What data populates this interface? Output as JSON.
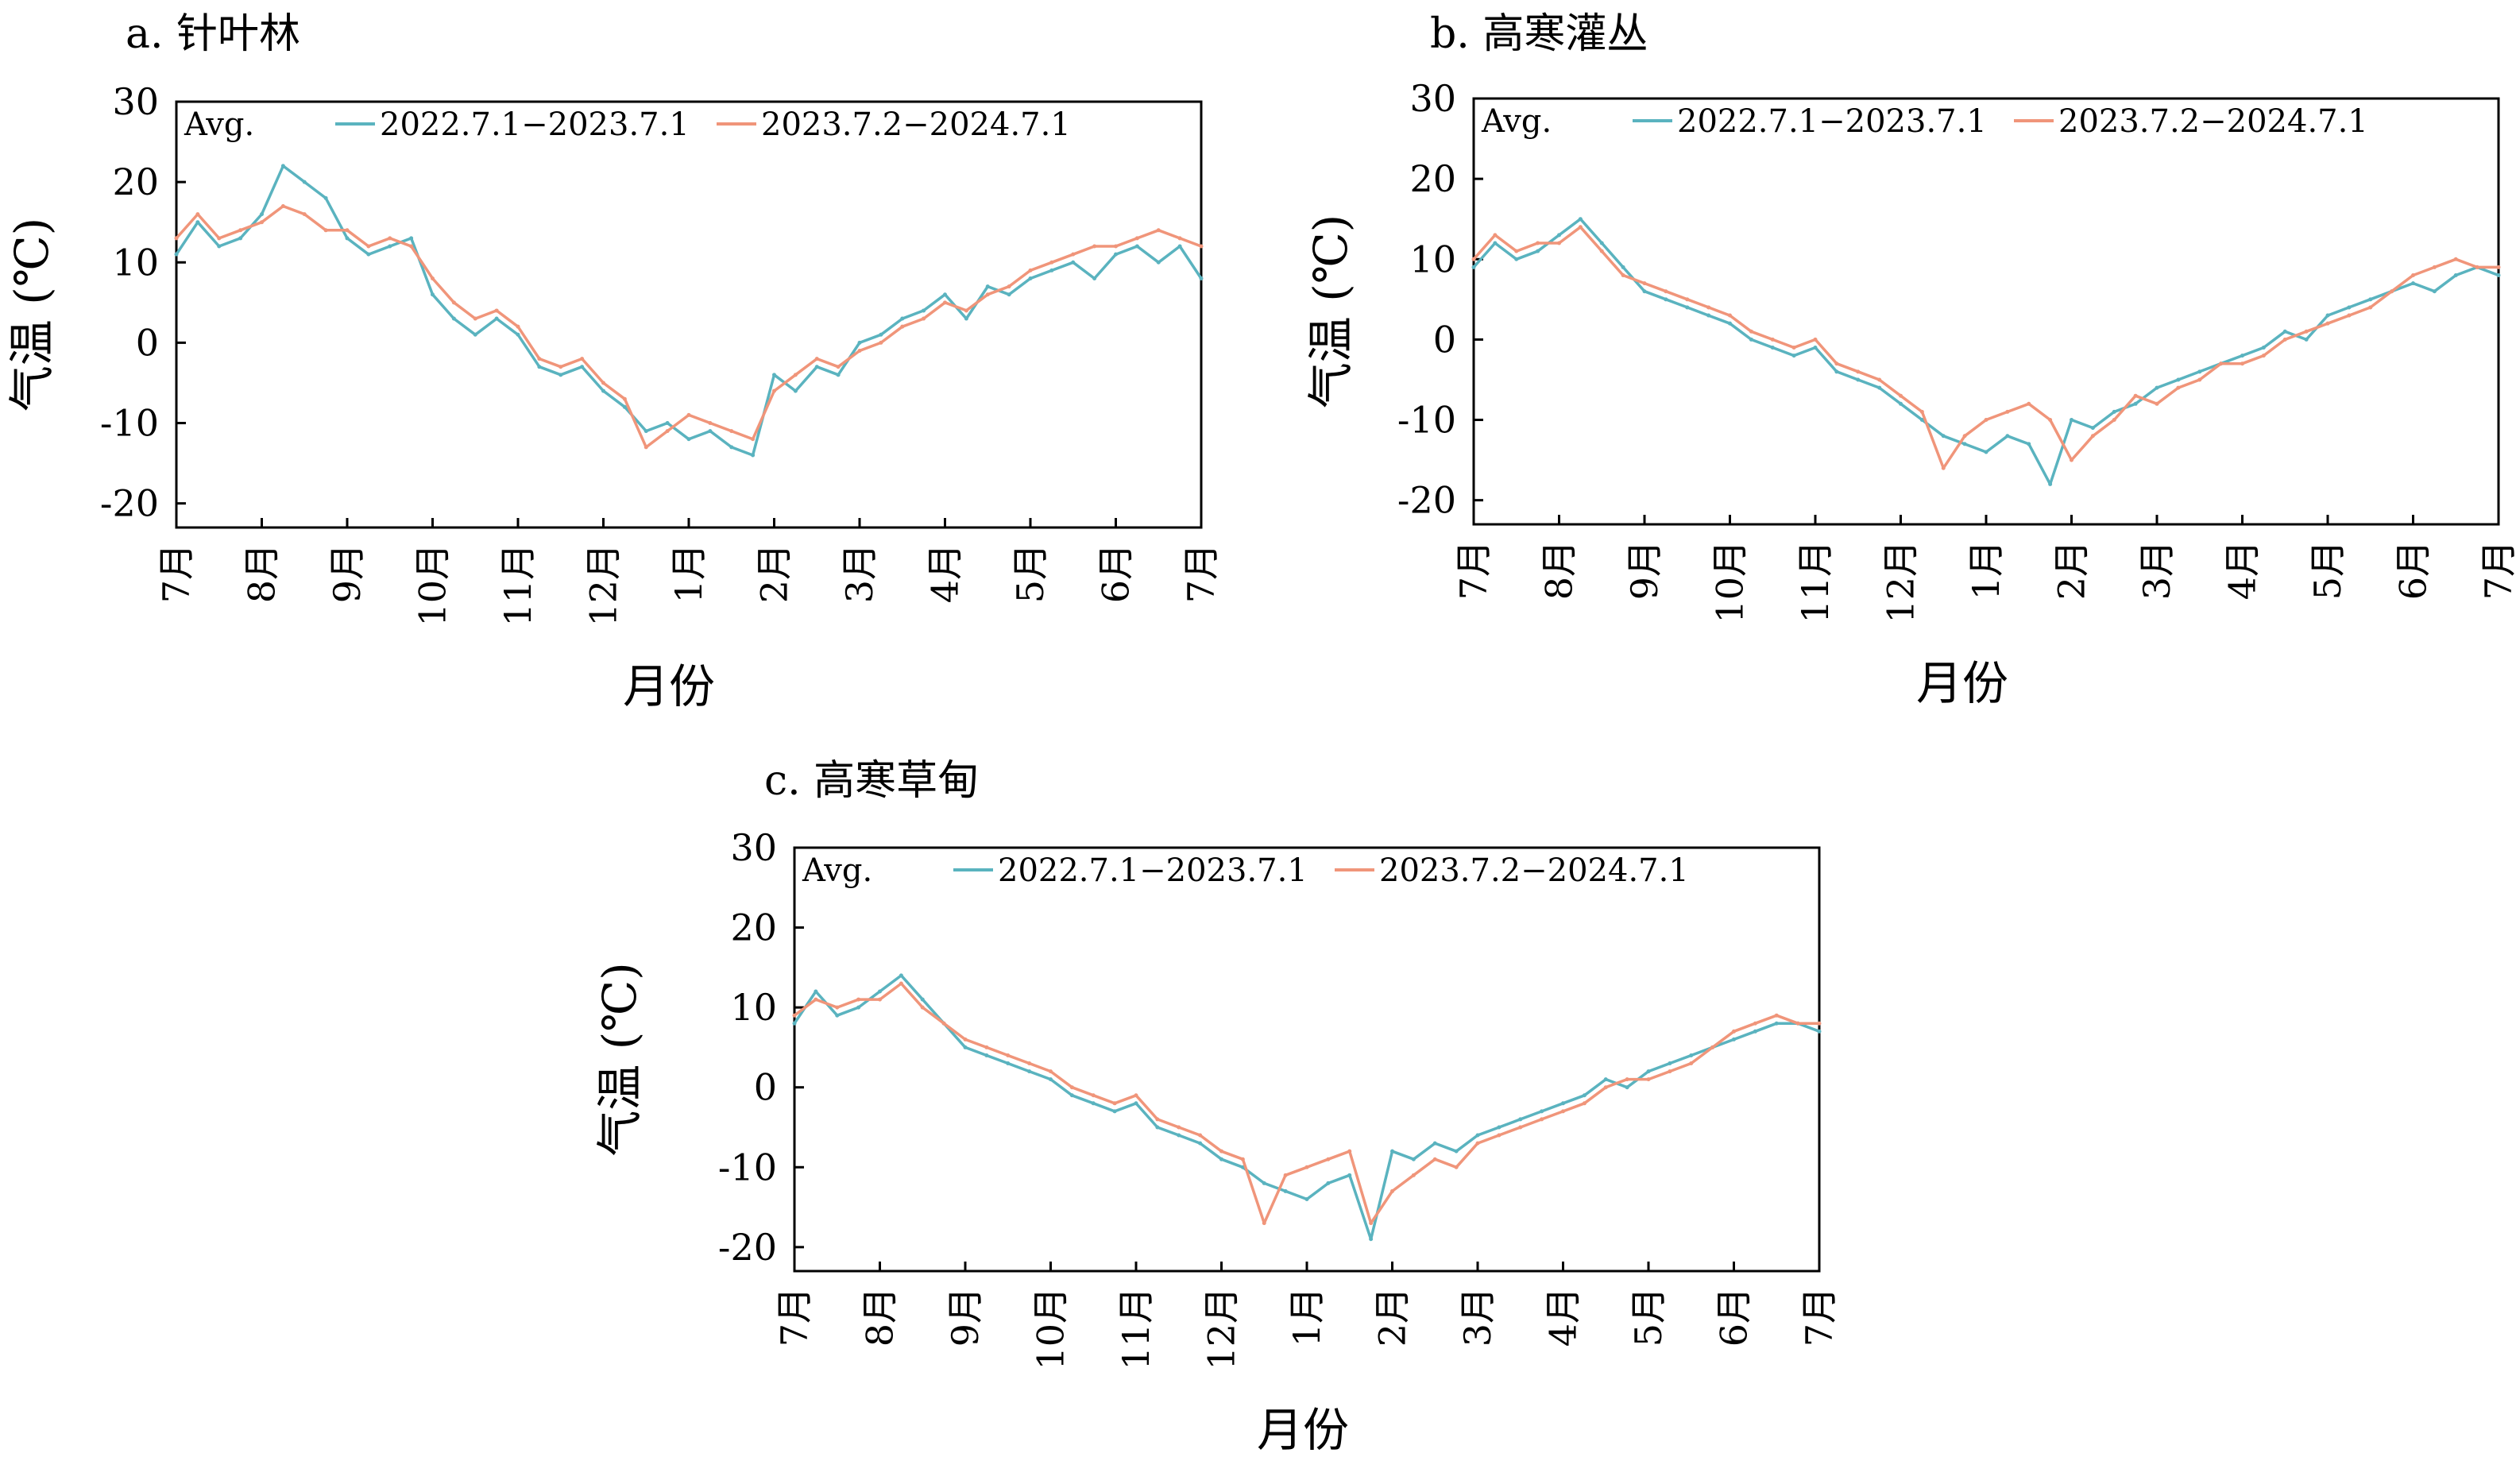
{
  "figure": {
    "colors": {
      "series_2022": "#5ab3bf",
      "series_2023": "#f0957a",
      "axis": "#000000"
    }
  },
  "chart_data": [
    {
      "type": "line",
      "panel_title": "a. 针叶林",
      "xlabel": "月份",
      "ylabel": "气温 (℃)",
      "ylim": [
        -23,
        30
      ],
      "yticks": [
        30,
        20,
        10,
        0,
        -10,
        -20
      ],
      "months": [
        "7月",
        "8月",
        "9月",
        "10月",
        "11月",
        "12月",
        "1月",
        "2月",
        "3月",
        "4月",
        "5月",
        "6月",
        "7月"
      ],
      "legend_title": "Avg.",
      "legend_position": "top",
      "grid": false,
      "x_unit": "month index (0 = July 1, 12 = following July 1)",
      "series": [
        {
          "name": "2022.7.1−2023.7.1",
          "color": "#5ab3bf",
          "x": [
            0,
            0.25,
            0.5,
            0.75,
            1,
            1.25,
            1.5,
            1.75,
            2,
            2.25,
            2.5,
            2.75,
            3,
            3.25,
            3.5,
            3.75,
            4,
            4.25,
            4.5,
            4.75,
            5,
            5.25,
            5.5,
            5.75,
            6,
            6.25,
            6.5,
            6.75,
            7,
            7.25,
            7.5,
            7.75,
            8,
            8.25,
            8.5,
            8.75,
            9,
            9.25,
            9.5,
            9.75,
            10,
            10.25,
            10.5,
            10.75,
            11,
            11.25,
            11.5,
            11.75,
            12
          ],
          "y": [
            11,
            15,
            12,
            13,
            16,
            22,
            20,
            18,
            13,
            11,
            12,
            13,
            6,
            3,
            1,
            3,
            1,
            -3,
            -4,
            -3,
            -6,
            -8,
            -11,
            -10,
            -12,
            -11,
            -13,
            -14,
            -4,
            -6,
            -3,
            -4,
            0,
            1,
            3,
            4,
            6,
            3,
            7,
            6,
            8,
            9,
            10,
            8,
            11,
            12,
            10,
            12,
            8
          ]
        },
        {
          "name": "2023.7.2−2024.7.1",
          "color": "#f0957a",
          "x": [
            0,
            0.25,
            0.5,
            0.75,
            1,
            1.25,
            1.5,
            1.75,
            2,
            2.25,
            2.5,
            2.75,
            3,
            3.25,
            3.5,
            3.75,
            4,
            4.25,
            4.5,
            4.75,
            5,
            5.25,
            5.5,
            5.75,
            6,
            6.25,
            6.5,
            6.75,
            7,
            7.25,
            7.5,
            7.75,
            8,
            8.25,
            8.5,
            8.75,
            9,
            9.25,
            9.5,
            9.75,
            10,
            10.25,
            10.5,
            10.75,
            11,
            11.25,
            11.5,
            11.75,
            12
          ],
          "y": [
            13,
            16,
            13,
            14,
            15,
            17,
            16,
            14,
            14,
            12,
            13,
            12,
            8,
            5,
            3,
            4,
            2,
            -2,
            -3,
            -2,
            -5,
            -7,
            -13,
            -11,
            -9,
            -10,
            -11,
            -12,
            -6,
            -4,
            -2,
            -3,
            -1,
            0,
            2,
            3,
            5,
            4,
            6,
            7,
            9,
            10,
            11,
            12,
            12,
            13,
            14,
            13,
            12
          ]
        }
      ]
    },
    {
      "type": "line",
      "panel_title": "b. 高寒灌丛",
      "xlabel": "月份",
      "ylabel": "气温 (℃)",
      "ylim": [
        -23,
        30
      ],
      "yticks": [
        30,
        20,
        10,
        0,
        -10,
        -20
      ],
      "months": [
        "7月",
        "8月",
        "9月",
        "10月",
        "11月",
        "12月",
        "1月",
        "2月",
        "3月",
        "4月",
        "5月",
        "6月",
        "7月"
      ],
      "legend_title": "Avg.",
      "legend_position": "top",
      "grid": false,
      "x_unit": "month index (0 = July 1, 12 = following July 1)",
      "series": [
        {
          "name": "2022.7.1−2023.7.1",
          "color": "#5ab3bf",
          "x": [
            0,
            0.25,
            0.5,
            0.75,
            1,
            1.25,
            1.5,
            1.75,
            2,
            2.25,
            2.5,
            2.75,
            3,
            3.25,
            3.5,
            3.75,
            4,
            4.25,
            4.5,
            4.75,
            5,
            5.25,
            5.5,
            5.75,
            6,
            6.25,
            6.5,
            6.75,
            7,
            7.25,
            7.5,
            7.75,
            8,
            8.25,
            8.5,
            8.75,
            9,
            9.25,
            9.5,
            9.75,
            10,
            10.25,
            10.5,
            10.75,
            11,
            11.25,
            11.5,
            11.75,
            12
          ],
          "y": [
            9,
            12,
            10,
            11,
            13,
            15,
            12,
            9,
            6,
            5,
            4,
            3,
            2,
            0,
            -1,
            -2,
            -1,
            -4,
            -5,
            -6,
            -8,
            -10,
            -12,
            -13,
            -14,
            -12,
            -13,
            -18,
            -10,
            -11,
            -9,
            -8,
            -6,
            -5,
            -4,
            -3,
            -2,
            -1,
            1,
            0,
            3,
            4,
            5,
            6,
            7,
            6,
            8,
            9,
            8
          ]
        },
        {
          "name": "2023.7.2−2024.7.1",
          "color": "#f0957a",
          "x": [
            0,
            0.25,
            0.5,
            0.75,
            1,
            1.25,
            1.5,
            1.75,
            2,
            2.25,
            2.5,
            2.75,
            3,
            3.25,
            3.5,
            3.75,
            4,
            4.25,
            4.5,
            4.75,
            5,
            5.25,
            5.5,
            5.75,
            6,
            6.25,
            6.5,
            6.75,
            7,
            7.25,
            7.5,
            7.75,
            8,
            8.25,
            8.5,
            8.75,
            9,
            9.25,
            9.5,
            9.75,
            10,
            10.25,
            10.5,
            10.75,
            11,
            11.25,
            11.5,
            11.75,
            12
          ],
          "y": [
            10,
            13,
            11,
            12,
            12,
            14,
            11,
            8,
            7,
            6,
            5,
            4,
            3,
            1,
            0,
            -1,
            0,
            -3,
            -4,
            -5,
            -7,
            -9,
            -16,
            -12,
            -10,
            -9,
            -8,
            -10,
            -15,
            -12,
            -10,
            -7,
            -8,
            -6,
            -5,
            -3,
            -3,
            -2,
            0,
            1,
            2,
            3,
            4,
            6,
            8,
            9,
            10,
            9,
            9
          ]
        }
      ]
    },
    {
      "type": "line",
      "panel_title": "c. 高寒草甸",
      "xlabel": "月份",
      "ylabel": "气温 (℃)",
      "ylim": [
        -23,
        30
      ],
      "yticks": [
        30,
        20,
        10,
        0,
        -10,
        -20
      ],
      "months": [
        "7月",
        "8月",
        "9月",
        "10月",
        "11月",
        "12月",
        "1月",
        "2月",
        "3月",
        "4月",
        "5月",
        "6月",
        "7月"
      ],
      "legend_title": "Avg.",
      "legend_position": "top",
      "grid": false,
      "x_unit": "month index (0 = July 1, 12 = following July 1)",
      "series": [
        {
          "name": "2022.7.1−2023.7.1",
          "color": "#5ab3bf",
          "x": [
            0,
            0.25,
            0.5,
            0.75,
            1,
            1.25,
            1.5,
            1.75,
            2,
            2.25,
            2.5,
            2.75,
            3,
            3.25,
            3.5,
            3.75,
            4,
            4.25,
            4.5,
            4.75,
            5,
            5.25,
            5.5,
            5.75,
            6,
            6.25,
            6.5,
            6.75,
            7,
            7.25,
            7.5,
            7.75,
            8,
            8.25,
            8.5,
            8.75,
            9,
            9.25,
            9.5,
            9.75,
            10,
            10.25,
            10.5,
            10.75,
            11,
            11.25,
            11.5,
            11.75,
            12
          ],
          "y": [
            8,
            12,
            9,
            10,
            12,
            14,
            11,
            8,
            5,
            4,
            3,
            2,
            1,
            -1,
            -2,
            -3,
            -2,
            -5,
            -6,
            -7,
            -9,
            -10,
            -12,
            -13,
            -14,
            -12,
            -11,
            -19,
            -8,
            -9,
            -7,
            -8,
            -6,
            -5,
            -4,
            -3,
            -2,
            -1,
            1,
            0,
            2,
            3,
            4,
            5,
            6,
            7,
            8,
            8,
            7
          ]
        },
        {
          "name": "2023.7.2−2024.7.1",
          "color": "#f0957a",
          "x": [
            0,
            0.25,
            0.5,
            0.75,
            1,
            1.25,
            1.5,
            1.75,
            2,
            2.25,
            2.5,
            2.75,
            3,
            3.25,
            3.5,
            3.75,
            4,
            4.25,
            4.5,
            4.75,
            5,
            5.25,
            5.5,
            5.75,
            6,
            6.25,
            6.5,
            6.75,
            7,
            7.25,
            7.5,
            7.75,
            8,
            8.25,
            8.5,
            8.75,
            9,
            9.25,
            9.5,
            9.75,
            10,
            10.25,
            10.5,
            10.75,
            11,
            11.25,
            11.5,
            11.75,
            12
          ],
          "y": [
            9,
            11,
            10,
            11,
            11,
            13,
            10,
            8,
            6,
            5,
            4,
            3,
            2,
            0,
            -1,
            -2,
            -1,
            -4,
            -5,
            -6,
            -8,
            -9,
            -17,
            -11,
            -10,
            -9,
            -8,
            -17,
            -13,
            -11,
            -9,
            -10,
            -7,
            -6,
            -5,
            -4,
            -3,
            -2,
            0,
            1,
            1,
            2,
            3,
            5,
            7,
            8,
            9,
            8,
            8
          ]
        }
      ]
    }
  ]
}
